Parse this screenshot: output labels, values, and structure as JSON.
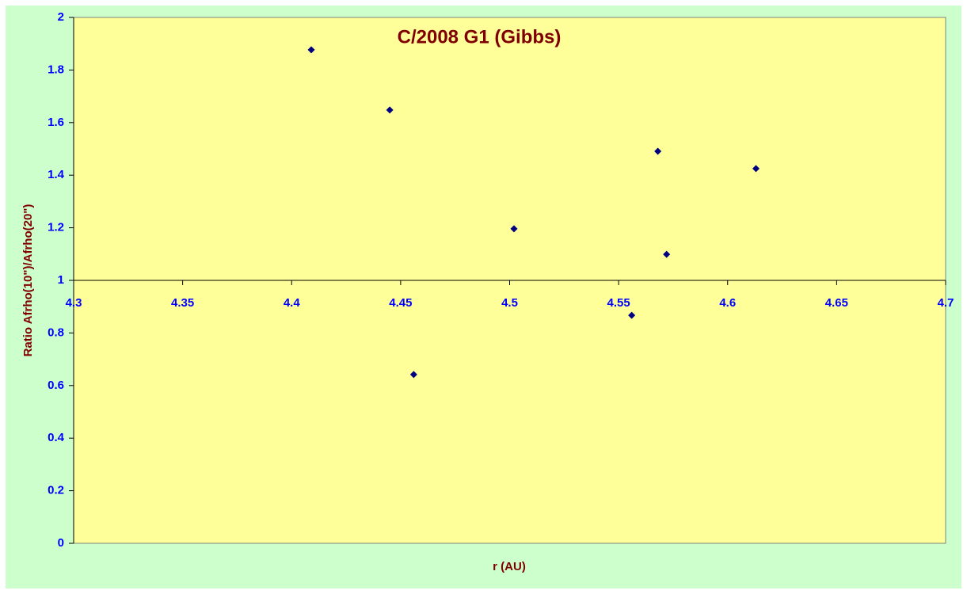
{
  "chart_data": {
    "type": "scatter",
    "title": "C/2008 G1 (Gibbs)",
    "x_label": "r (AU)",
    "y_label": "Ratio Afrho(10\")/Afrho(20\")",
    "x": [
      4.409,
      4.445,
      4.456,
      4.502,
      4.556,
      4.568,
      4.572,
      4.613
    ],
    "values": [
      1.877,
      1.648,
      0.642,
      1.196,
      0.867,
      1.491,
      1.099,
      1.425
    ],
    "color": "#000080",
    "xlim": [
      4.3,
      4.7
    ],
    "xticks": [
      4.3,
      4.35,
      4.4,
      4.45,
      4.5,
      4.55,
      4.6,
      4.65,
      4.7
    ],
    "ylim": [
      0,
      2
    ],
    "yticks": [
      0,
      0.2,
      0.4,
      0.6,
      0.8,
      1,
      1.2,
      1.4,
      1.6,
      1.8,
      2
    ],
    "x_axis_crosses_at": 1
  }
}
